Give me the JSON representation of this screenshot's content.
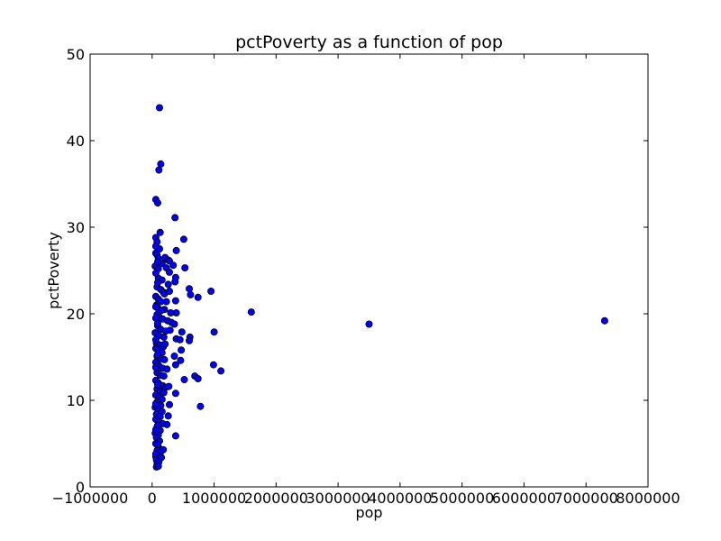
{
  "chart_data": {
    "type": "scatter",
    "title": "pctPoverty as a function of pop",
    "xlabel": "pop",
    "ylabel": "pctPoverty",
    "xlim": [
      -1000000,
      8000000
    ],
    "ylim": [
      0,
      50
    ],
    "xticks": [
      -1000000,
      0,
      1000000,
      2000000,
      3000000,
      4000000,
      5000000,
      6000000,
      7000000,
      8000000
    ],
    "xtick_labels": [
      "−1000000",
      "0",
      "1000000",
      "2000000",
      "3000000",
      "4000000",
      "5000000",
      "6000000",
      "7000000",
      "8000000"
    ],
    "yticks": [
      0,
      10,
      20,
      30,
      40,
      50
    ],
    "ytick_labels": [
      "0",
      "10",
      "20",
      "30",
      "40",
      "50"
    ],
    "grid": false,
    "marker_color": "#0000ff",
    "marker_edge_color": "#000000",
    "series": [
      {
        "points": [
          [
            120000,
            43.8
          ],
          [
            140000,
            37.3
          ],
          [
            110000,
            36.6
          ],
          [
            60000,
            33.2
          ],
          [
            90000,
            32.8
          ],
          [
            370000,
            31.1
          ],
          [
            130000,
            29.4
          ],
          [
            60000,
            28.8
          ],
          [
            80000,
            28.3
          ],
          [
            510000,
            28.6
          ],
          [
            60000,
            27.8
          ],
          [
            120000,
            27.5
          ],
          [
            390000,
            27.3
          ],
          [
            60000,
            27.0
          ],
          [
            80000,
            26.8
          ],
          [
            100000,
            26.4
          ],
          [
            210000,
            26.5
          ],
          [
            260000,
            26.2
          ],
          [
            280000,
            26.1
          ],
          [
            160000,
            25.8
          ],
          [
            340000,
            25.6
          ],
          [
            50000,
            25.5
          ],
          [
            100000,
            25.2
          ],
          [
            230000,
            25.3
          ],
          [
            530000,
            25.3
          ],
          [
            280000,
            24.8
          ],
          [
            380000,
            24.2
          ],
          [
            100000,
            24.1
          ],
          [
            160000,
            23.9
          ],
          [
            370000,
            23.7
          ],
          [
            260000,
            23.4
          ],
          [
            80000,
            23.1
          ],
          [
            140000,
            22.8
          ],
          [
            180000,
            22.5
          ],
          [
            200000,
            22.3
          ],
          [
            280000,
            22.6
          ],
          [
            600000,
            22.9
          ],
          [
            950000,
            22.6
          ],
          [
            620000,
            22.2
          ],
          [
            740000,
            21.9
          ],
          [
            60000,
            22.0
          ],
          [
            100000,
            21.7
          ],
          [
            140000,
            21.4
          ],
          [
            230000,
            21.4
          ],
          [
            380000,
            21.5
          ],
          [
            70000,
            21.0
          ],
          [
            100000,
            20.6
          ],
          [
            200000,
            20.5
          ],
          [
            150000,
            20.4
          ],
          [
            300000,
            20.1
          ],
          [
            390000,
            20.1
          ],
          [
            1600000,
            20.2
          ],
          [
            80000,
            19.9
          ],
          [
            120000,
            19.6
          ],
          [
            170000,
            19.4
          ],
          [
            250000,
            19.2
          ],
          [
            310000,
            19.0
          ],
          [
            360000,
            18.8
          ],
          [
            3500000,
            18.8
          ],
          [
            7300000,
            19.2
          ],
          [
            90000,
            18.6
          ],
          [
            140000,
            18.2
          ],
          [
            220000,
            18.0
          ],
          [
            290000,
            18.1
          ],
          [
            480000,
            17.9
          ],
          [
            1000000,
            17.9
          ],
          [
            50000,
            17.8
          ],
          [
            110000,
            17.5
          ],
          [
            190000,
            17.3
          ],
          [
            390000,
            17.1
          ],
          [
            450000,
            17.0
          ],
          [
            610000,
            17.3
          ],
          [
            600000,
            16.9
          ],
          [
            70000,
            16.6
          ],
          [
            130000,
            16.4
          ],
          [
            180000,
            16.2
          ],
          [
            210000,
            16.5
          ],
          [
            60000,
            16.0
          ],
          [
            100000,
            15.8
          ],
          [
            160000,
            15.5
          ],
          [
            470000,
            15.8
          ],
          [
            360000,
            15.1
          ],
          [
            80000,
            15.1
          ],
          [
            140000,
            14.8
          ],
          [
            200000,
            14.7
          ],
          [
            460000,
            14.6
          ],
          [
            380000,
            14.1
          ],
          [
            990000,
            14.1
          ],
          [
            60000,
            14.4
          ],
          [
            110000,
            14.0
          ],
          [
            170000,
            13.7
          ],
          [
            240000,
            13.6
          ],
          [
            1110000,
            13.4
          ],
          [
            80000,
            13.2
          ],
          [
            130000,
            12.9
          ],
          [
            190000,
            12.8
          ],
          [
            690000,
            12.8
          ],
          [
            740000,
            12.5
          ],
          [
            520000,
            12.4
          ],
          [
            60000,
            12.3
          ],
          [
            100000,
            12.0
          ],
          [
            170000,
            11.7
          ],
          [
            220000,
            11.5
          ],
          [
            270000,
            11.6
          ],
          [
            80000,
            11.3
          ],
          [
            130000,
            11.0
          ],
          [
            190000,
            10.9
          ],
          [
            380000,
            10.8
          ],
          [
            60000,
            10.6
          ],
          [
            110000,
            10.3
          ],
          [
            160000,
            10.1
          ],
          [
            80000,
            9.8
          ],
          [
            140000,
            9.4
          ],
          [
            280000,
            9.5
          ],
          [
            780000,
            9.3
          ],
          [
            50000,
            9.2
          ],
          [
            100000,
            8.9
          ],
          [
            160000,
            8.7
          ],
          [
            70000,
            8.4
          ],
          [
            130000,
            8.1
          ],
          [
            260000,
            8.2
          ],
          [
            60000,
            7.8
          ],
          [
            110000,
            7.5
          ],
          [
            170000,
            7.3
          ],
          [
            240000,
            7.2
          ],
          [
            80000,
            6.9
          ],
          [
            130000,
            6.5
          ],
          [
            50000,
            6.2
          ],
          [
            100000,
            6.0
          ],
          [
            380000,
            5.9
          ],
          [
            70000,
            5.7
          ],
          [
            120000,
            5.3
          ],
          [
            60000,
            5.0
          ],
          [
            100000,
            4.6
          ],
          [
            180000,
            4.3
          ],
          [
            80000,
            4.2
          ],
          [
            130000,
            3.9
          ],
          [
            60000,
            3.5
          ],
          [
            100000,
            3.3
          ],
          [
            150000,
            3.4
          ],
          [
            70000,
            3.1
          ],
          [
            110000,
            2.9
          ],
          [
            80000,
            2.6
          ],
          [
            70000,
            2.3
          ],
          [
            100000,
            2.4
          ],
          [
            60000,
            3.8
          ],
          [
            90000,
            4.9
          ],
          [
            60000,
            6.6
          ],
          [
            90000,
            7.1
          ],
          [
            60000,
            9.6
          ],
          [
            90000,
            11.8
          ],
          [
            60000,
            13.8
          ],
          [
            90000,
            15.3
          ],
          [
            60000,
            17.0
          ],
          [
            90000,
            18.9
          ],
          [
            60000,
            20.8
          ],
          [
            90000,
            23.6
          ],
          [
            60000,
            24.7
          ],
          [
            90000,
            26.0
          ],
          [
            60000,
            19.5
          ]
        ]
      }
    ]
  }
}
